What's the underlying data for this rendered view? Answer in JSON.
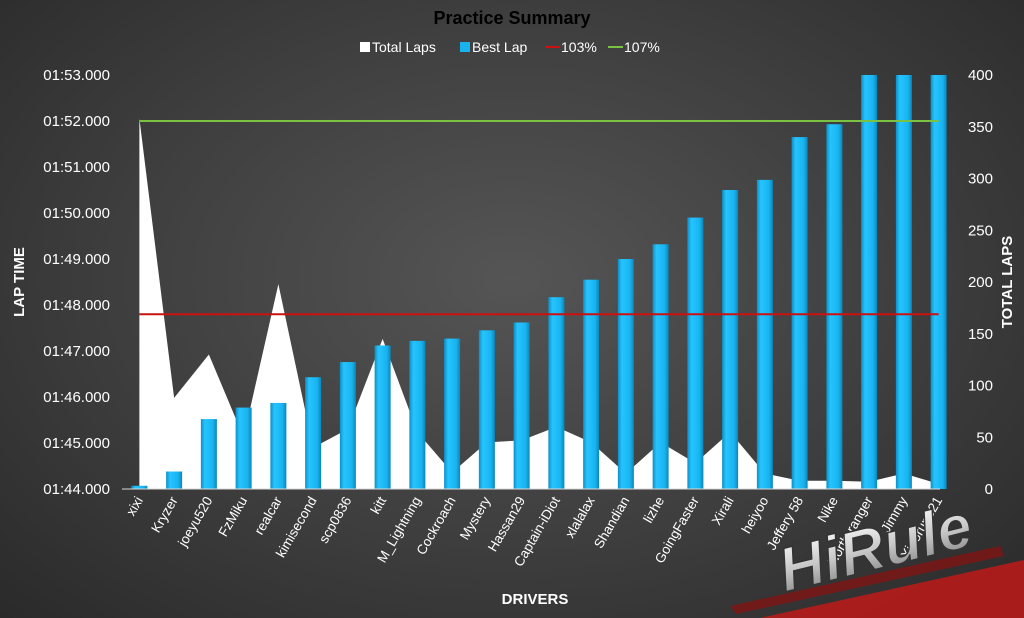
{
  "chart_data": {
    "type": "bar",
    "title": "Practice Summary",
    "xlabel": "DRIVERS",
    "ylabel": "LAP TIME",
    "y2label": "TOTAL LAPS",
    "legend": [
      "Total Laps",
      "Best Lap",
      "103%",
      "107%"
    ],
    "legend_placement": "top",
    "categories": [
      "xixi",
      "Kryzer",
      "joeyu520",
      "FzMiku",
      "realcar",
      "kimisecond",
      "scp0836",
      "kitt",
      "M_Lightning",
      "Cockroach",
      "Mystery",
      "Hassan29",
      "Captain-iDiot",
      "xlalalax",
      "Shandian",
      "lizhe",
      "GoingFaster",
      "Xirali",
      "heiyoo",
      "Jeffery 58",
      "Nike",
      "North-ranger",
      "Jimmy",
      "Xiaorun821"
    ],
    "y_ticks": [
      "01:44.000",
      "01:45.000",
      "01:46.000",
      "01:47.000",
      "01:48.000",
      "01:49.000",
      "01:50.000",
      "01:51.000",
      "01:52.000",
      "01:53.000"
    ],
    "y_range_seconds": [
      104,
      113
    ],
    "y2_ticks": [
      "0",
      "50",
      "100",
      "150",
      "200",
      "250",
      "300",
      "350",
      "400"
    ],
    "y2_range": [
      0,
      400
    ],
    "series": [
      {
        "name": "Best Lap",
        "type": "bar",
        "color": "#19b4f0",
        "axis": "left",
        "values_seconds": [
          104.07,
          104.38,
          105.52,
          105.77,
          105.87,
          106.43,
          106.76,
          107.12,
          107.22,
          107.27,
          107.45,
          107.62,
          108.17,
          108.55,
          109.0,
          109.32,
          109.9,
          110.5,
          110.72,
          111.65,
          111.93,
          113.0,
          113.0,
          113.0
        ]
      },
      {
        "name": "Total Laps",
        "type": "area",
        "color": "#ffffff",
        "axis": "right",
        "values": [
          358,
          88,
          130,
          50,
          198,
          40,
          58,
          145,
          55,
          16,
          45,
          47,
          60,
          45,
          15,
          45,
          25,
          55,
          15,
          8,
          8,
          7,
          15,
          5
        ]
      },
      {
        "name": "103%",
        "type": "line",
        "color": "#cc1111",
        "axis": "left",
        "value_seconds": 107.8
      },
      {
        "name": "107%",
        "type": "line",
        "color": "#7cc242",
        "axis": "left",
        "value_seconds": 112.0
      }
    ],
    "grid": false
  },
  "watermark": {
    "text": "HiRule"
  }
}
